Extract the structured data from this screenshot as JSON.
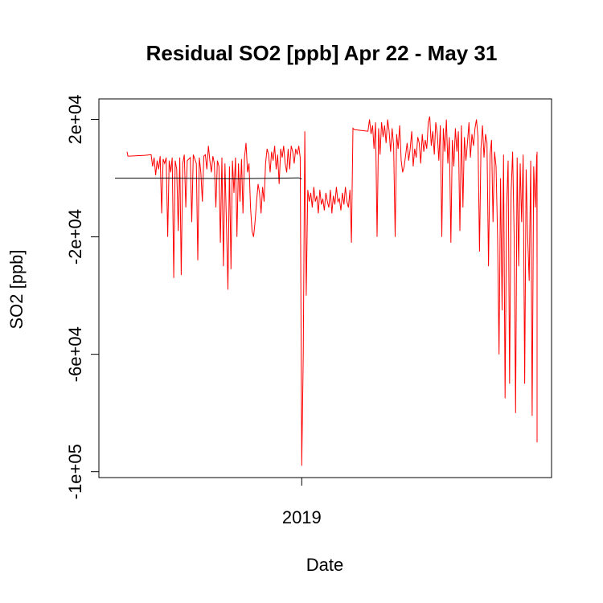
{
  "chart_data": {
    "type": "line",
    "title": "Residual SO2 [ppb] Apr 22 - May 31",
    "xlabel": "Date",
    "ylabel": "SO2 [ppb]",
    "ylim": [
      -102000,
      27000
    ],
    "y_ticks": [
      {
        "value": 20000,
        "label": "2e+04"
      },
      {
        "value": -20000,
        "label": "-2e+04"
      },
      {
        "value": -60000,
        "label": "-6e+04"
      },
      {
        "value": -100000,
        "label": "-1e+05"
      }
    ],
    "x_ticks": [
      {
        "value": 0.62,
        "label": "2019"
      }
    ],
    "grid": false,
    "legend": "none",
    "colors": {
      "residual": "#ff0000",
      "baseline": "#000000",
      "frame": "#000000"
    },
    "series": [
      {
        "color": "#ff0000",
        "points": [
          [
            0.04,
            9000
          ],
          [
            0.043,
            7500
          ],
          [
            0.1,
            7800
          ],
          [
            0.12,
            8000
          ],
          [
            0.125,
            4000
          ],
          [
            0.13,
            7000
          ],
          [
            0.135,
            1000
          ],
          [
            0.14,
            6000
          ],
          [
            0.145,
            3000
          ],
          [
            0.15,
            7500
          ],
          [
            0.155,
            -12000
          ],
          [
            0.16,
            6500
          ],
          [
            0.165,
            5000
          ],
          [
            0.17,
            7000
          ],
          [
            0.175,
            -20000
          ],
          [
            0.18,
            6000
          ],
          [
            0.185,
            2000
          ],
          [
            0.19,
            7000
          ],
          [
            0.195,
            -34000
          ],
          [
            0.2,
            6000
          ],
          [
            0.205,
            3000
          ],
          [
            0.21,
            -18000
          ],
          [
            0.215,
            7000
          ],
          [
            0.22,
            -33000
          ],
          [
            0.225,
            5000
          ],
          [
            0.23,
            8000
          ],
          [
            0.235,
            -10000
          ],
          [
            0.24,
            6000
          ],
          [
            0.25,
            7000
          ],
          [
            0.255,
            -15000
          ],
          [
            0.26,
            8000
          ],
          [
            0.27,
            5000
          ],
          [
            0.275,
            -28000
          ],
          [
            0.28,
            7000
          ],
          [
            0.285,
            2000
          ],
          [
            0.29,
            -8000
          ],
          [
            0.295,
            7500
          ],
          [
            0.3,
            8000
          ],
          [
            0.305,
            3000
          ],
          [
            0.31,
            11000
          ],
          [
            0.315,
            6000
          ],
          [
            0.32,
            2000
          ],
          [
            0.325,
            7500
          ],
          [
            0.33,
            5000
          ],
          [
            0.335,
            -10000
          ],
          [
            0.34,
            6000
          ],
          [
            0.345,
            4000
          ],
          [
            0.35,
            -22000
          ],
          [
            0.355,
            7000
          ],
          [
            0.36,
            -30000
          ],
          [
            0.365,
            5000
          ],
          [
            0.37,
            -15000
          ],
          [
            0.375,
            -38000
          ],
          [
            0.38,
            4000
          ],
          [
            0.385,
            -31000
          ],
          [
            0.39,
            6000
          ],
          [
            0.395,
            -5000
          ],
          [
            0.4,
            7000
          ],
          [
            0.405,
            -20000
          ],
          [
            0.41,
            5000
          ],
          [
            0.415,
            -8000
          ],
          [
            0.42,
            6500
          ],
          [
            0.425,
            -12000
          ],
          [
            0.43,
            7000
          ],
          [
            0.435,
            12000
          ],
          [
            0.44,
            2000
          ],
          [
            0.445,
            5000
          ],
          [
            0.45,
            -10000
          ],
          [
            0.455,
            -18000
          ],
          [
            0.46,
            -20000
          ],
          [
            0.465,
            -15000
          ],
          [
            0.47,
            -8000
          ],
          [
            0.475,
            -2000
          ],
          [
            0.48,
            -5000
          ],
          [
            0.485,
            -12000
          ],
          [
            0.49,
            -3000
          ],
          [
            0.495,
            -8000
          ],
          [
            0.5,
            5000
          ],
          [
            0.505,
            10000
          ],
          [
            0.51,
            8000
          ],
          [
            0.515,
            2000
          ],
          [
            0.52,
            9000
          ],
          [
            0.525,
            6000
          ],
          [
            0.53,
            11000
          ],
          [
            0.535,
            3000
          ],
          [
            0.54,
            8000
          ],
          [
            0.545,
            -2000
          ],
          [
            0.55,
            10000
          ],
          [
            0.555,
            7000
          ],
          [
            0.56,
            11000
          ],
          [
            0.565,
            5000
          ],
          [
            0.57,
            2000
          ],
          [
            0.575,
            10000
          ],
          [
            0.58,
            3000
          ],
          [
            0.585,
            11000
          ],
          [
            0.59,
            9000
          ],
          [
            0.595,
            5000
          ],
          [
            0.6,
            10000
          ],
          [
            0.605,
            8000
          ],
          [
            0.61,
            11000
          ],
          [
            0.615,
            7000
          ],
          [
            0.62,
            -98000
          ],
          [
            0.625,
            -60000
          ],
          [
            0.63,
            16000
          ],
          [
            0.635,
            -40000
          ],
          [
            0.64,
            -4000
          ],
          [
            0.645,
            -8000
          ],
          [
            0.65,
            -5000
          ],
          [
            0.655,
            -10000
          ],
          [
            0.66,
            -3000
          ],
          [
            0.665,
            -8000
          ],
          [
            0.67,
            -6000
          ],
          [
            0.675,
            -12000
          ],
          [
            0.68,
            -4000
          ],
          [
            0.685,
            -9000
          ],
          [
            0.69,
            -7000
          ],
          [
            0.695,
            -11000
          ],
          [
            0.7,
            -5000
          ],
          [
            0.705,
            -8000
          ],
          [
            0.71,
            -10000
          ],
          [
            0.715,
            -4000
          ],
          [
            0.72,
            -12000
          ],
          [
            0.725,
            -6000
          ],
          [
            0.73,
            -9000
          ],
          [
            0.735,
            -3000
          ],
          [
            0.74,
            -8000
          ],
          [
            0.745,
            -7000
          ],
          [
            0.75,
            -11000
          ],
          [
            0.755,
            -5000
          ],
          [
            0.76,
            -9000
          ],
          [
            0.765,
            -3000
          ],
          [
            0.77,
            -8000
          ],
          [
            0.775,
            -10000
          ],
          [
            0.78,
            -4000
          ],
          [
            0.785,
            -22000
          ],
          [
            0.79,
            17000
          ],
          [
            0.795,
            16500
          ],
          [
            0.84,
            16000
          ],
          [
            0.845,
            20000
          ],
          [
            0.85,
            15000
          ],
          [
            0.855,
            18000
          ],
          [
            0.86,
            10000
          ],
          [
            0.865,
            19000
          ],
          [
            0.87,
            -20000
          ],
          [
            0.875,
            17000
          ],
          [
            0.88,
            8000
          ],
          [
            0.885,
            19000
          ],
          [
            0.89,
            14000
          ],
          [
            0.895,
            18000
          ],
          [
            0.9,
            12000
          ],
          [
            0.905,
            20000
          ],
          [
            0.91,
            16000
          ],
          [
            0.915,
            9000
          ],
          [
            0.92,
            17000
          ],
          [
            0.925,
            11000
          ],
          [
            0.93,
            -20000
          ],
          [
            0.935,
            15000
          ],
          [
            0.94,
            10000
          ],
          [
            0.945,
            18000
          ],
          [
            0.95,
            6000
          ],
          [
            0.955,
            2000
          ],
          [
            0.96,
            4000
          ],
          [
            0.965,
            8000
          ],
          [
            0.97,
            12000
          ],
          [
            0.975,
            6000
          ],
          [
            0.98,
            10000
          ],
          [
            0.985,
            16000
          ],
          [
            0.99,
            4000
          ],
          [
            0.995,
            10000
          ],
          [
            1.0,
            7000
          ],
          [
            1.005,
            14000
          ],
          [
            1.01,
            12000
          ],
          [
            1.015,
            5000
          ],
          [
            1.02,
            15000
          ],
          [
            1.025,
            9000
          ],
          [
            1.03,
            13000
          ],
          [
            1.035,
            10000
          ],
          [
            1.04,
            19000
          ],
          [
            1.045,
            21000
          ],
          [
            1.05,
            11000
          ],
          [
            1.055,
            16000
          ],
          [
            1.06,
            8000
          ],
          [
            1.065,
            19000
          ],
          [
            1.07,
            15000
          ],
          [
            1.075,
            6000
          ],
          [
            1.08,
            18000
          ],
          [
            1.085,
            -20000
          ],
          [
            1.09,
            17000
          ],
          [
            1.095,
            9000
          ],
          [
            1.1,
            20000
          ],
          [
            1.105,
            5000
          ],
          [
            1.11,
            14000
          ],
          [
            1.115,
            -22000
          ],
          [
            1.12,
            13000
          ],
          [
            1.125,
            4000
          ],
          [
            1.13,
            17000
          ],
          [
            1.135,
            9000
          ],
          [
            1.14,
            16000
          ],
          [
            1.145,
            -18000
          ],
          [
            1.15,
            18000
          ],
          [
            1.155,
            -10000
          ],
          [
            1.16,
            14000
          ],
          [
            1.165,
            6000
          ],
          [
            1.17,
            12000
          ],
          [
            1.175,
            19000
          ],
          [
            1.18,
            7000
          ],
          [
            1.185,
            15000
          ],
          [
            1.19,
            11000
          ],
          [
            1.195,
            17000
          ],
          [
            1.2,
            20000
          ],
          [
            1.205,
            14000
          ],
          [
            1.21,
            -25000
          ],
          [
            1.215,
            10000
          ],
          [
            1.22,
            18000
          ],
          [
            1.225,
            7000
          ],
          [
            1.23,
            15000
          ],
          [
            1.235,
            12000
          ],
          [
            1.24,
            -30000
          ],
          [
            1.245,
            8000
          ],
          [
            1.25,
            13000
          ],
          [
            1.255,
            -15000
          ],
          [
            1.26,
            9000
          ],
          [
            1.265,
            4000
          ],
          [
            1.27,
            -20000
          ],
          [
            1.275,
            -60000
          ],
          [
            1.28,
            0
          ],
          [
            1.285,
            -45000
          ],
          [
            1.29,
            8000
          ],
          [
            1.295,
            -75000
          ],
          [
            1.3,
            -10000
          ],
          [
            1.305,
            6000
          ],
          [
            1.31,
            -70000
          ],
          [
            1.315,
            -5000
          ],
          [
            1.32,
            9000
          ],
          [
            1.325,
            -20000
          ],
          [
            1.33,
            -80000
          ],
          [
            1.335,
            7000
          ],
          [
            1.34,
            -30000
          ],
          [
            1.345,
            5000
          ],
          [
            1.35,
            -15000
          ],
          [
            1.355,
            8000
          ],
          [
            1.36,
            -70000
          ],
          [
            1.365,
            3000
          ],
          [
            1.37,
            -20000
          ],
          [
            1.375,
            -35000
          ],
          [
            1.38,
            6000
          ],
          [
            1.385,
            -81000
          ],
          [
            1.39,
            4000
          ],
          [
            1.395,
            -10000
          ],
          [
            1.4,
            8000
          ],
          [
            1.405,
            -30000
          ],
          [
            1.41,
            -90000
          ],
          [
            1.415,
            7000
          ],
          [
            1.42,
            -20000
          ],
          [
            1.425,
            9000
          ],
          [
            1.43,
            5000
          ],
          [
            1.435,
            8000
          ]
        ]
      },
      {
        "color": "#000000",
        "points": [
          [
            0.0,
            0
          ],
          [
            0.2,
            0
          ],
          [
            0.4,
            -200
          ],
          [
            0.55,
            0
          ],
          [
            0.61,
            100
          ],
          [
            0.62,
            -300
          ]
        ]
      }
    ]
  }
}
